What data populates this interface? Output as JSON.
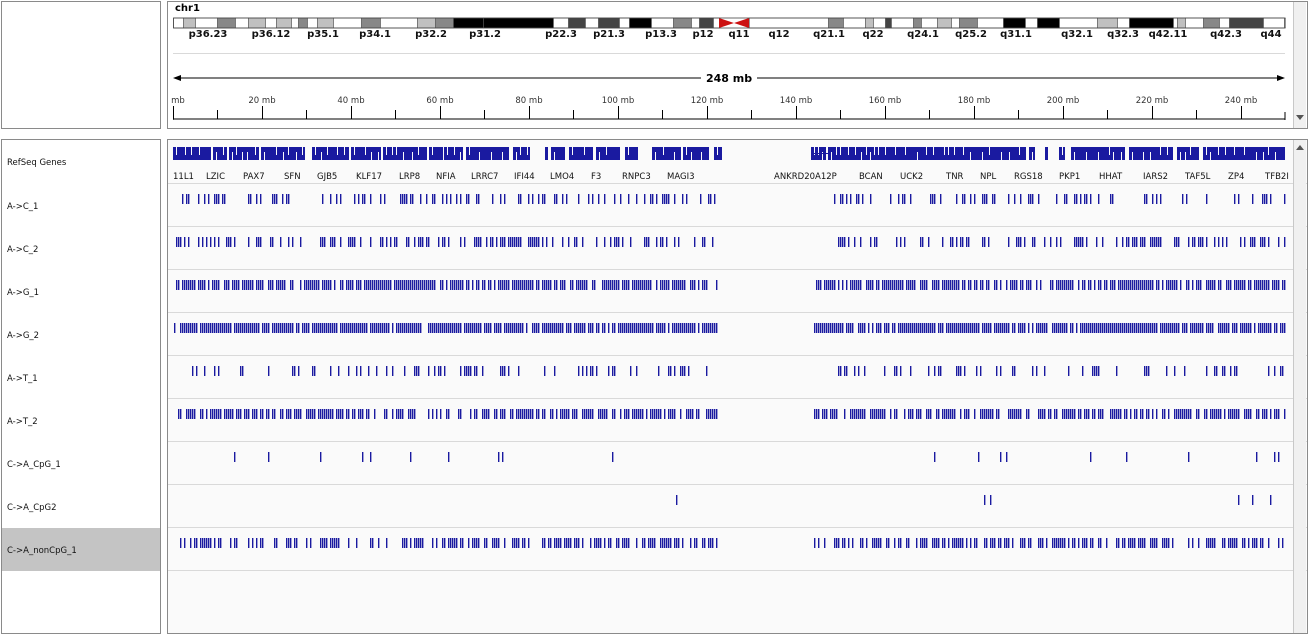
{
  "header": {
    "chromosome": "chr1",
    "span_label": "248 mb",
    "cytobands": [
      "p36.23",
      "p36.12",
      "p35.1",
      "p34.1",
      "p32.2",
      "p31.2",
      "p22.3",
      "p21.3",
      "p13.3",
      "p12",
      "q11",
      "q12",
      "q21.1",
      "q22",
      "q24.1",
      "q25.2",
      "q31.1",
      "q32.1",
      "q32.3",
      "q42.11",
      "q42.3",
      "q44"
    ],
    "ruler_ticks": [
      "mb",
      "20 mb",
      "40 mb",
      "60 mb",
      "80 mb",
      "100 mb",
      "120 mb",
      "140 mb",
      "160 mb",
      "180 mb",
      "200 mb",
      "220 mb",
      "240 mb"
    ]
  },
  "tracks": [
    {
      "name": "RefSeq Genes"
    },
    {
      "name": "A->C_1"
    },
    {
      "name": "A->C_2"
    },
    {
      "name": "A->G_1"
    },
    {
      "name": "A->G_2"
    },
    {
      "name": "A->T_1"
    },
    {
      "name": "A->T_2"
    },
    {
      "name": "C->A_CpG_1"
    },
    {
      "name": "C->A_CpG2"
    },
    {
      "name": "C->A_nonCpG_1",
      "selected": true
    }
  ],
  "genes": [
    "11L1",
    "LZIC",
    "PAX7",
    "SFN",
    "GJB5",
    "KLF17",
    "LRP8",
    "NFIA",
    "LRRC7",
    "IFI44",
    "LMO4",
    "F3",
    "RNPC3",
    "MAGI3",
    "ANKRD20A12P",
    "BCAN",
    "UCK2",
    "TNR",
    "NPL",
    "RGS18",
    "PKP1",
    "HHAT",
    "IARS2",
    "TAF5L",
    "ZP4",
    "TFB2I"
  ],
  "colors": {
    "feature": "#1a1aa0",
    "centromere": "#cc1111",
    "selected_row": "#c4c4c4"
  }
}
